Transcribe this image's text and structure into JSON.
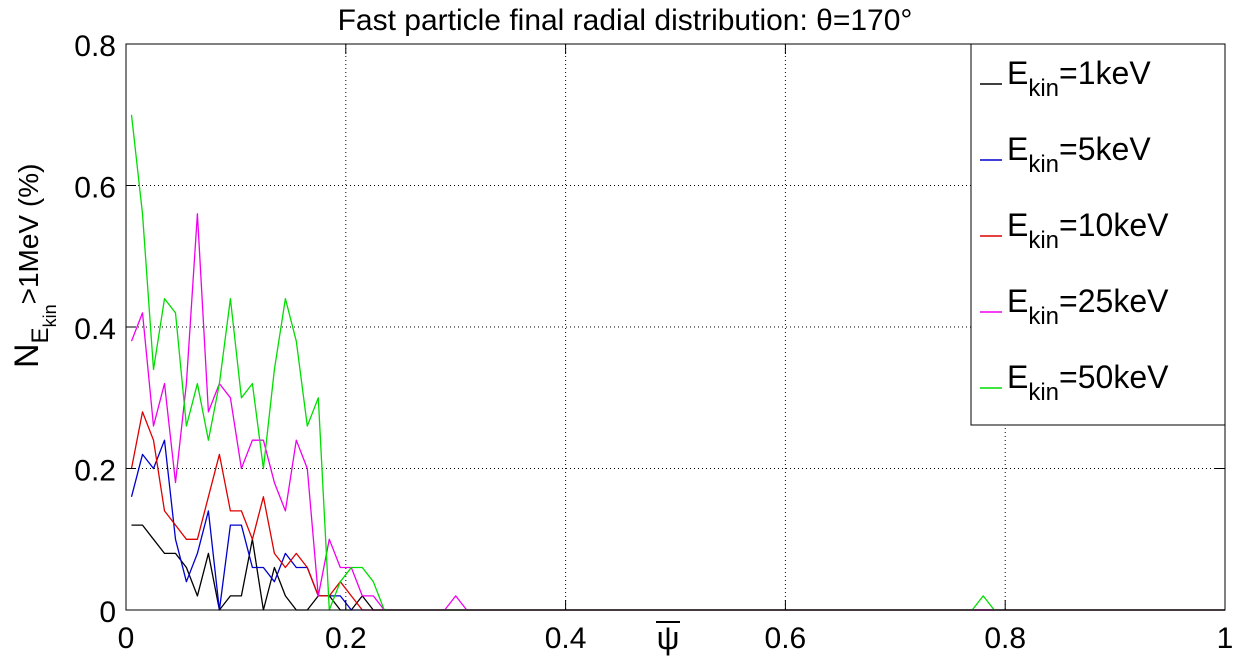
{
  "chart_data": {
    "type": "line",
    "title": "Fast particle final radial distribution: θ=170°",
    "xlabel": "ψ",
    "ylabel": {
      "main": "N",
      "sub": "E",
      "subsub": "kin",
      "tail": ">1MeV (%)"
    },
    "xlim": [
      0,
      1
    ],
    "ylim": [
      0,
      0.8
    ],
    "xticks": [
      "0",
      "0.2",
      "0.4",
      "0.6",
      "0.8",
      "1"
    ],
    "yticks": [
      "0",
      "0.2",
      "0.4",
      "0.6",
      "0.8"
    ],
    "grid": true,
    "legend_position": "top-right",
    "series": [
      {
        "name": "E_kin=1keV",
        "legend": {
          "main": "E",
          "sub": "kin",
          "tail": "=1keV"
        },
        "color": "#000000",
        "x": [
          0.005,
          0.015,
          0.025,
          0.035,
          0.045,
          0.055,
          0.065,
          0.075,
          0.085,
          0.095,
          0.105,
          0.115,
          0.125,
          0.135,
          0.145,
          0.155,
          0.165,
          0.175,
          0.185,
          0.195,
          0.205,
          0.215,
          0.225,
          0.235,
          0.3,
          0.78,
          1.0
        ],
        "y": [
          0.12,
          0.12,
          0.1,
          0.08,
          0.08,
          0.06,
          0.02,
          0.08,
          0.0,
          0.02,
          0.02,
          0.1,
          0.0,
          0.06,
          0.02,
          0.0,
          0.0,
          0.02,
          0.02,
          0.0,
          0.0,
          0.02,
          0.0,
          0.0,
          0.0,
          0.0,
          0.0
        ]
      },
      {
        "name": "E_kin=5keV",
        "legend": {
          "main": "E",
          "sub": "kin",
          "tail": "=5keV"
        },
        "color": "#0000cc",
        "x": [
          0.005,
          0.015,
          0.025,
          0.035,
          0.045,
          0.055,
          0.065,
          0.075,
          0.085,
          0.095,
          0.105,
          0.115,
          0.125,
          0.135,
          0.145,
          0.155,
          0.165,
          0.175,
          0.185,
          0.195,
          0.205,
          0.215,
          0.225,
          0.3,
          0.78,
          1.0
        ],
        "y": [
          0.16,
          0.22,
          0.2,
          0.24,
          0.1,
          0.04,
          0.08,
          0.14,
          0.0,
          0.12,
          0.12,
          0.06,
          0.06,
          0.04,
          0.08,
          0.06,
          0.06,
          0.02,
          0.02,
          0.02,
          0.0,
          0.0,
          0.0,
          0.0,
          0.0,
          0.0
        ]
      },
      {
        "name": "E_kin=10keV",
        "legend": {
          "main": "E",
          "sub": "kin",
          "tail": "=10keV"
        },
        "color": "#dd0000",
        "x": [
          0.005,
          0.015,
          0.025,
          0.035,
          0.045,
          0.055,
          0.065,
          0.075,
          0.085,
          0.095,
          0.105,
          0.115,
          0.125,
          0.135,
          0.145,
          0.155,
          0.165,
          0.175,
          0.185,
          0.195,
          0.205,
          0.215,
          0.225,
          0.3,
          0.78,
          1.0
        ],
        "y": [
          0.2,
          0.28,
          0.24,
          0.14,
          0.12,
          0.1,
          0.1,
          0.16,
          0.22,
          0.14,
          0.14,
          0.1,
          0.16,
          0.08,
          0.06,
          0.08,
          0.06,
          0.02,
          0.02,
          0.04,
          0.02,
          0.0,
          0.0,
          0.0,
          0.0,
          0.0
        ]
      },
      {
        "name": "E_kin=25keV",
        "legend": {
          "main": "E",
          "sub": "kin",
          "tail": "=25keV"
        },
        "color": "#ee00ee",
        "x": [
          0.005,
          0.015,
          0.025,
          0.035,
          0.045,
          0.055,
          0.065,
          0.075,
          0.085,
          0.095,
          0.105,
          0.115,
          0.125,
          0.135,
          0.145,
          0.155,
          0.165,
          0.175,
          0.185,
          0.195,
          0.205,
          0.215,
          0.225,
          0.235,
          0.29,
          0.3,
          0.31,
          1.0
        ],
        "y": [
          0.38,
          0.42,
          0.26,
          0.32,
          0.18,
          0.32,
          0.56,
          0.28,
          0.32,
          0.3,
          0.2,
          0.24,
          0.24,
          0.18,
          0.14,
          0.24,
          0.2,
          0.02,
          0.1,
          0.06,
          0.06,
          0.02,
          0.02,
          0.0,
          0.0,
          0.02,
          0.0,
          0.0
        ]
      },
      {
        "name": "E_kin=50keV",
        "legend": {
          "main": "E",
          "sub": "kin",
          "tail": "=50keV"
        },
        "color": "#00dd00",
        "x": [
          0.005,
          0.015,
          0.025,
          0.035,
          0.045,
          0.055,
          0.065,
          0.075,
          0.085,
          0.095,
          0.105,
          0.115,
          0.125,
          0.135,
          0.145,
          0.155,
          0.165,
          0.175,
          0.185,
          0.195,
          0.205,
          0.215,
          0.225,
          0.235,
          0.77,
          0.78,
          0.79,
          1.0
        ],
        "y": [
          0.7,
          0.56,
          0.34,
          0.44,
          0.42,
          0.26,
          0.32,
          0.24,
          0.32,
          0.44,
          0.3,
          0.32,
          0.2,
          0.34,
          0.44,
          0.38,
          0.26,
          0.3,
          0.0,
          0.04,
          0.06,
          0.06,
          0.04,
          0.0,
          0.0,
          0.02,
          0.0,
          0.0
        ]
      }
    ]
  }
}
